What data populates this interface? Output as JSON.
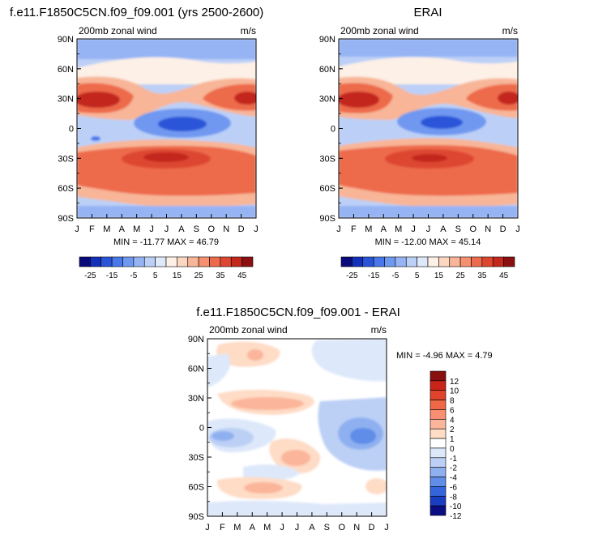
{
  "chart_data": [
    {
      "type": "heatmap",
      "panel_title": "f.e11.F1850C5CN.f09_f09.001 (yrs 2500-2600)",
      "left_label": "200mb zonal wind",
      "units": "m/s",
      "x_ticks": [
        "J",
        "F",
        "M",
        "A",
        "M",
        "J",
        "J",
        "A",
        "S",
        "O",
        "N",
        "D",
        "J"
      ],
      "y_ticks": [
        "90N",
        "60N",
        "30N",
        "0",
        "30S",
        "60S",
        "90S"
      ],
      "stats": "MIN = -11.77 MAX = 46.79",
      "min": -11.77,
      "max": 46.79,
      "colorbar_labels": [
        "-25",
        "-15",
        "-5",
        "5",
        "15",
        "25",
        "35",
        "45"
      ],
      "xlim": [
        0,
        12
      ],
      "ylim": [
        -90,
        90
      ]
    },
    {
      "type": "heatmap",
      "panel_title": "ERAI",
      "left_label": "200mb zonal wind",
      "units": "m/s",
      "x_ticks": [
        "J",
        "F",
        "M",
        "A",
        "M",
        "J",
        "J",
        "A",
        "S",
        "O",
        "N",
        "D",
        "J"
      ],
      "y_ticks": [
        "90N",
        "60N",
        "30N",
        "0",
        "30S",
        "60S",
        "90S"
      ],
      "stats": "MIN = -12.00 MAX = 45.14",
      "min": -12.0,
      "max": 45.14,
      "colorbar_labels": [
        "-25",
        "-15",
        "-5",
        "5",
        "15",
        "25",
        "35",
        "45"
      ],
      "xlim": [
        0,
        12
      ],
      "ylim": [
        -90,
        90
      ]
    },
    {
      "type": "heatmap",
      "panel_title": "f.e11.F1850C5CN.f09_f09.001 - ERAI",
      "left_label": "200mb zonal wind",
      "units": "m/s",
      "x_ticks": [
        "J",
        "F",
        "M",
        "A",
        "M",
        "J",
        "J",
        "A",
        "S",
        "O",
        "N",
        "D",
        "J"
      ],
      "y_ticks": [
        "90N",
        "60N",
        "30N",
        "0",
        "30S",
        "60S",
        "90S"
      ],
      "stats": "MIN =  -4.96 MAX =   4.79",
      "min": -4.96,
      "max": 4.79,
      "colorbar_labels": [
        "12",
        "10",
        "8",
        "6",
        "4",
        "2",
        "1",
        "0",
        "-1",
        "-2",
        "-4",
        "-6",
        "-8",
        "-10",
        "-12"
      ],
      "xlim": [
        0,
        12
      ],
      "ylim": [
        -90,
        90
      ]
    }
  ],
  "palettes": {
    "full": [
      "#0a0a7a",
      "#1530b8",
      "#2a55d9",
      "#4a78ea",
      "#6f98f0",
      "#96b4f4",
      "#bcd0f7",
      "#dee9fa",
      "#fdf0e6",
      "#fbd6c0",
      "#f8b597",
      "#f59170",
      "#ed6b4c",
      "#dd4631",
      "#c3281c",
      "#8c1010"
    ],
    "diff": [
      "#8a1010",
      "#c8241a",
      "#e0432c",
      "#ee6746",
      "#f78f70",
      "#fbb59a",
      "#fedcc6",
      "#ffffff",
      "#dde8fa",
      "#bcd0f6",
      "#8fb0f0",
      "#5f8de8",
      "#3565dc",
      "#1a3ec2",
      "#0a0e82"
    ]
  }
}
